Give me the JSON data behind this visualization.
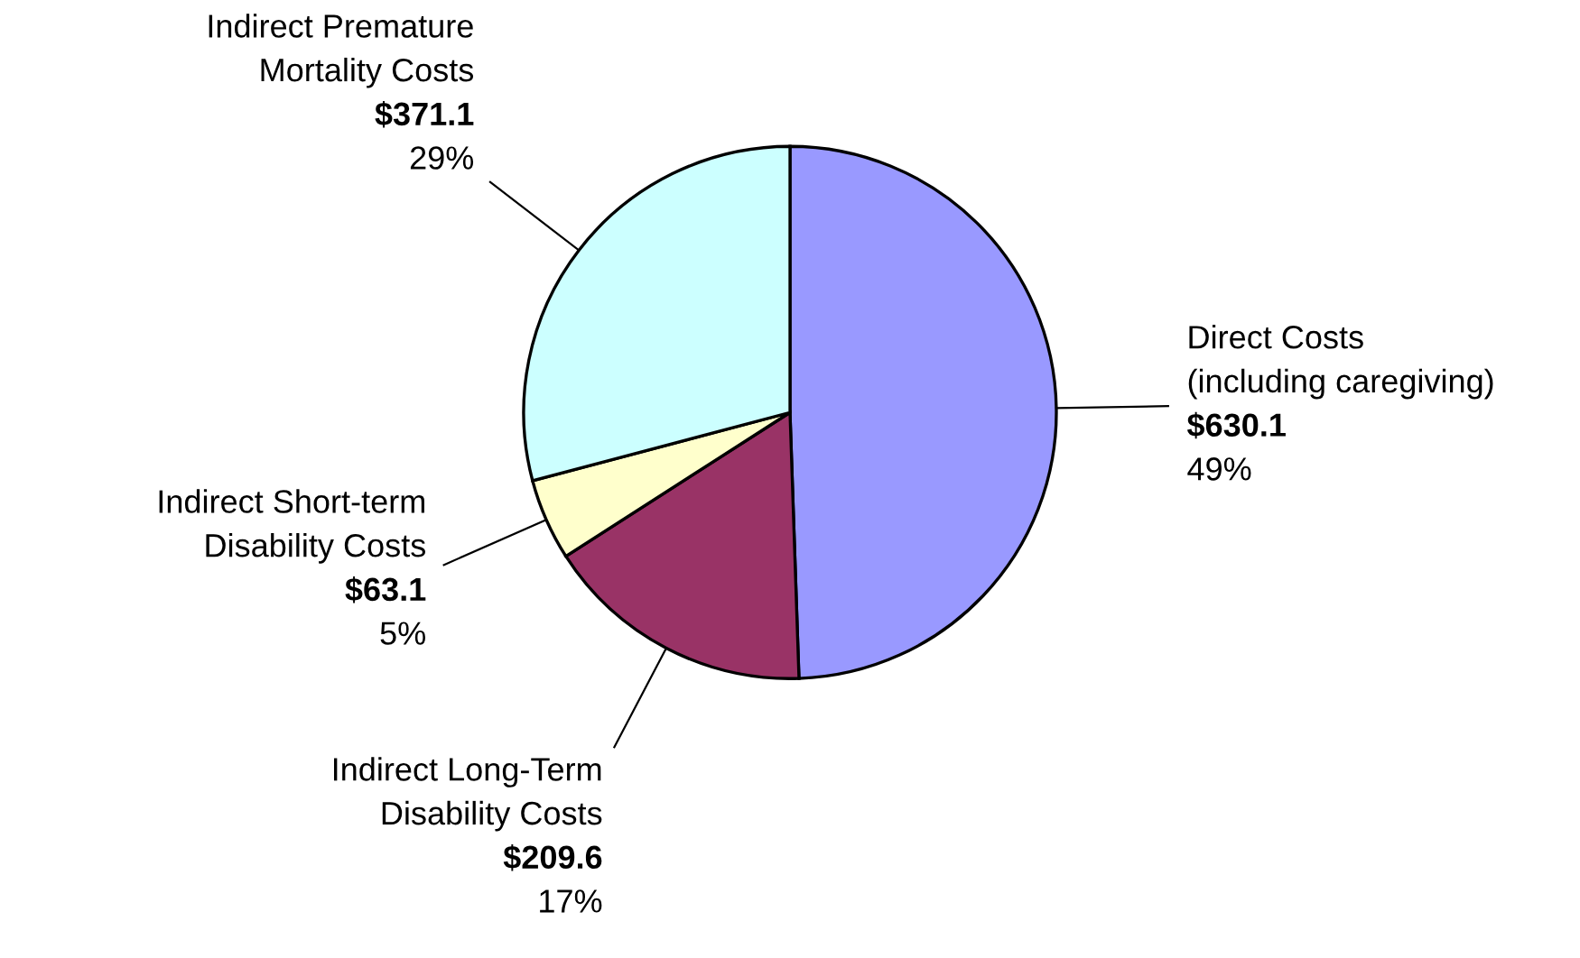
{
  "chart_data": {
    "type": "pie",
    "categories": [
      "Direct Costs\n(including caregiving)",
      "Indirect Long-Term\nDisability Costs",
      "Indirect Short-term\nDisability Costs",
      "Indirect Premature\nMortality Costs"
    ],
    "values": [
      630.1,
      209.6,
      63.1,
      371.1
    ],
    "value_labels": [
      "$630.1\n49%",
      "$209.6\n17%",
      "$63.1\n5%",
      "$371.1\n29%"
    ],
    "colors": [
      "#9999ff",
      "#993366",
      "#ffffcc",
      "#ccffff"
    ],
    "legend": false
  }
}
